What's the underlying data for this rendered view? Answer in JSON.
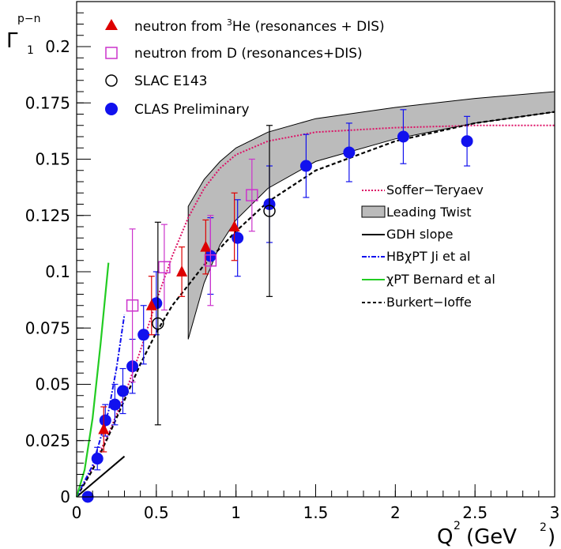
{
  "chart_data": {
    "type": "scatter",
    "title": "",
    "ylabel_parts": {
      "base": "Γ",
      "sup": "p−n",
      "sub": "1"
    },
    "xlabel_parts": {
      "q": "Q",
      "sup1": "2",
      "open": "(GeV",
      "sup2": "2",
      "close": ")"
    },
    "xlim": [
      0,
      3
    ],
    "ylim": [
      0,
      0.22
    ],
    "x_ticks": [
      0,
      0.5,
      1,
      1.5,
      2,
      2.5,
      3
    ],
    "x_tick_labels": [
      "0",
      "0.5",
      "1",
      "1.5",
      "2",
      "2.5",
      "3"
    ],
    "y_ticks": [
      0,
      0.025,
      0.05,
      0.075,
      0.1,
      0.125,
      0.15,
      0.175,
      0.2
    ],
    "y_tick_labels": [
      "0",
      "0.025",
      "0.05",
      "0.075",
      "0.1",
      "0.125",
      "0.15",
      "0.175",
      "0.2"
    ],
    "grid": false,
    "colors": {
      "red": "#dd0000",
      "magenta": "#cc33cc",
      "blue": "#1111ee",
      "black": "#000000",
      "green": "#22cc22",
      "band": "#bbbbbb"
    },
    "legend_top": [
      {
        "marker": "triangle-red",
        "label": "neutron from ",
        "sup": "3",
        "label2": "He (resonances + DIS)"
      },
      {
        "marker": "open-square-magenta",
        "label": "neutron from D (resonances+DIS)"
      },
      {
        "marker": "open-circle-black",
        "label": "SLAC E143"
      },
      {
        "marker": "filled-circle-blue",
        "label": "CLAS Preliminary"
      }
    ],
    "legend_right": [
      {
        "style": "dotted-magenta",
        "label": "Soffer−Teryaev"
      },
      {
        "style": "band-gray",
        "label": "Leading Twist"
      },
      {
        "style": "solid-black",
        "label": "GDH slope"
      },
      {
        "style": "dashdot-blue",
        "label": "HBχPT Ji et al"
      },
      {
        "style": "solid-green",
        "label": "χPT Bernard et al"
      },
      {
        "style": "dashed-black",
        "label": "Burkert−Ioffe"
      }
    ],
    "series": [
      {
        "name": "CLAS Preliminary",
        "marker": "filled-circle",
        "color": "#1111ee",
        "points": [
          [
            0.07,
            0.0,
            0.0
          ],
          [
            0.13,
            0.017,
            0.005
          ],
          [
            0.18,
            0.034,
            0.007
          ],
          [
            0.24,
            0.041,
            0.009
          ],
          [
            0.29,
            0.047,
            0.01
          ],
          [
            0.35,
            0.058,
            0.012
          ],
          [
            0.42,
            0.072,
            0.013
          ],
          [
            0.5,
            0.086,
            0.014
          ],
          [
            0.84,
            0.107,
            0.017
          ],
          [
            1.01,
            0.115,
            0.017
          ],
          [
            1.21,
            0.13,
            0.017
          ],
          [
            1.44,
            0.147,
            0.014
          ],
          [
            1.71,
            0.153,
            0.013
          ],
          [
            2.05,
            0.16,
            0.012
          ],
          [
            2.45,
            0.158,
            0.011
          ]
        ]
      },
      {
        "name": "neutron from 3He",
        "marker": "triangle",
        "color": "#dd0000",
        "points": [
          [
            0.17,
            0.03,
            0.01
          ],
          [
            0.47,
            0.085,
            0.013
          ],
          [
            0.66,
            0.1,
            0.011
          ],
          [
            0.81,
            0.111,
            0.012
          ],
          [
            0.99,
            0.12,
            0.015
          ]
        ]
      },
      {
        "name": "neutron from D",
        "marker": "open-square",
        "color": "#cc33cc",
        "points": [
          [
            0.35,
            0.085,
            0.034
          ],
          [
            0.55,
            0.102,
            0.019
          ],
          [
            0.84,
            0.105,
            0.02
          ],
          [
            1.1,
            0.134,
            0.016
          ]
        ]
      },
      {
        "name": "SLAC E143",
        "marker": "open-circle",
        "color": "#000000",
        "points": [
          [
            0.51,
            0.077,
            0.045
          ],
          [
            1.21,
            0.127,
            0.038
          ]
        ]
      }
    ],
    "curves": {
      "soffer_teryaev": {
        "x": [
          0.0,
          0.1,
          0.2,
          0.3,
          0.4,
          0.5,
          0.6,
          0.7,
          0.8,
          0.9,
          1.0,
          1.2,
          1.5,
          2.0,
          2.5,
          3.0
        ],
        "y": [
          0.0,
          0.013,
          0.028,
          0.045,
          0.065,
          0.087,
          0.107,
          0.124,
          0.137,
          0.146,
          0.152,
          0.158,
          0.162,
          0.164,
          0.165,
          0.165
        ]
      },
      "burkert_ioffe": {
        "x": [
          0.0,
          0.1,
          0.2,
          0.3,
          0.4,
          0.5,
          0.6,
          0.8,
          1.0,
          1.2,
          1.5,
          2.0,
          2.5,
          3.0
        ],
        "y": [
          0.0,
          0.012,
          0.027,
          0.043,
          0.059,
          0.073,
          0.085,
          0.103,
          0.118,
          0.131,
          0.145,
          0.158,
          0.166,
          0.171
        ]
      },
      "gdh_slope": {
        "x": [
          0.0,
          0.3
        ],
        "y": [
          0.0,
          0.018
        ]
      },
      "hbchipt": {
        "x": [
          0.0,
          0.1,
          0.2,
          0.25,
          0.3
        ],
        "y": [
          0.0,
          0.014,
          0.038,
          0.057,
          0.081
        ]
      },
      "chipt_bernard": {
        "x": [
          0.0,
          0.05,
          0.1,
          0.15,
          0.2
        ],
        "y": [
          0.0,
          0.012,
          0.035,
          0.068,
          0.104
        ]
      },
      "leading_twist_upper": {
        "x": [
          0.7,
          0.8,
          0.9,
          1.0,
          1.2,
          1.5,
          2.0,
          2.5,
          3.0
        ],
        "y": [
          0.129,
          0.141,
          0.149,
          0.155,
          0.162,
          0.168,
          0.173,
          0.177,
          0.18
        ]
      },
      "leading_twist_lower": {
        "x": [
          0.7,
          0.8,
          0.9,
          1.0,
          1.2,
          1.5,
          2.0,
          2.5,
          3.0
        ],
        "y": [
          0.07,
          0.095,
          0.112,
          0.123,
          0.137,
          0.149,
          0.159,
          0.166,
          0.171
        ]
      }
    }
  }
}
